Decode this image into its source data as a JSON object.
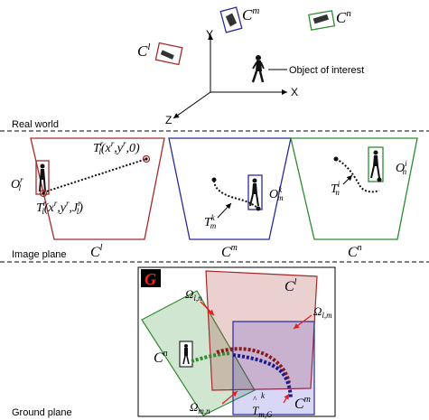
{
  "real_world": {
    "section_label": "Real world",
    "axes": {
      "y": "Y",
      "x": "X",
      "z": "Z"
    },
    "object_label": "Object of interest",
    "cameras": {
      "l": "C",
      "l_sup": "l",
      "m": "C",
      "m_sup": "m",
      "n": "C",
      "n_sup": "n"
    }
  },
  "image_plane": {
    "section_label": "Image plane",
    "camera_labels": {
      "l": "C",
      "l_sup": "l",
      "m": "C",
      "m_sup": "m",
      "n": "C",
      "n_sup": "n"
    },
    "annotations": {
      "o_l": "O",
      "o_l_sub": "l",
      "o_l_sup": "r",
      "t_top": "T",
      "t_top_sub": "l",
      "t_top_sup": "r",
      "t_top_args": "(x",
      "t_top_args2": ",y",
      "t_top_args3": ",0)",
      "t_bot": "T",
      "t_bot_sub": "l",
      "t_bot_sup": "r",
      "t_bot_args": "(x",
      "t_bot_args2": ",y",
      "t_bot_args3": ",J",
      "t_bot_args4": ")",
      "o_m": "O",
      "o_m_sub": "m",
      "o_m_sup": "k",
      "t_m": "T",
      "t_m_sub": "m",
      "t_m_sup": "k",
      "t_n": "T",
      "t_n_sub": "n",
      "t_n_sup": "i",
      "o_n": "O",
      "o_n_sub": "n",
      "o_n_sup": "i"
    }
  },
  "ground_plane": {
    "section_label": "Ground plane",
    "g_label": "G",
    "labels": {
      "cl": "C",
      "cl_sup": "l",
      "cn": "C",
      "cn_sup": "n",
      "cm": "C",
      "cm_sup": "m",
      "omega_ln": "Ω",
      "omega_ln_sub": "l,n",
      "omega_lm": "Ω",
      "omega_lm_sub": "l,m",
      "omega_mn": "Ω",
      "omega_mn_sub": "m,n",
      "t_mg": "T",
      "t_mg_sub": "m,G",
      "t_mg_sup": "k",
      "t_mg_hat": "^"
    }
  },
  "colors": {
    "red": "#a52a2a",
    "blue": "#2b2b9c",
    "green": "#2e8b2e",
    "arrow_red": "#e02020",
    "g_label_bg": "#000000",
    "g_label_fg": "#ff2020"
  }
}
